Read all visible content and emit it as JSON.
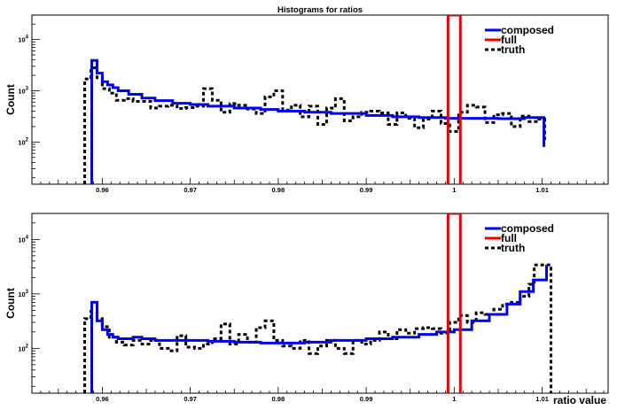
{
  "chart_data": [
    {
      "type": "histogram",
      "title": "Histograms for ratios",
      "ylabel": "Count",
      "xlabel": "",
      "xlim": [
        0.952,
        1.0175
      ],
      "ylim": [
        15,
        30000
      ],
      "log_y": true,
      "xticks": [
        "0.96",
        "0.97",
        "0.98",
        "0.99",
        "1",
        "1.01"
      ],
      "yticks": [
        "10^2",
        "10^3",
        "10^4"
      ],
      "legend": {
        "placement": "top-right",
        "entries": [
          "composed",
          "full",
          "truth"
        ]
      },
      "colors": {
        "composed": "#0000ee",
        "full": "#ee0000",
        "truth": "#000000"
      },
      "series": [
        {
          "name": "composed",
          "style": "solid",
          "x": [
            0.9588,
            0.9594,
            0.96,
            0.9606,
            0.9612,
            0.9618,
            0.963,
            0.9645,
            0.966,
            0.968,
            0.97,
            0.972,
            0.975,
            0.978,
            0.98,
            0.983,
            0.986,
            0.99,
            0.993,
            0.996,
            0.999,
            1.002,
            1.005,
            1.008,
            1.0102
          ],
          "values": [
            3900,
            2200,
            1500,
            1300,
            1150,
            1000,
            850,
            720,
            640,
            570,
            540,
            500,
            460,
            430,
            400,
            380,
            360,
            330,
            310,
            300,
            290,
            290,
            285,
            300,
            80
          ]
        },
        {
          "name": "full",
          "style": "solid",
          "x": [
            0.9993,
            1.0007
          ],
          "values": [
            30000
          ]
        },
        {
          "name": "truth",
          "style": "dashed",
          "x": [
            0.958,
            0.9587,
            0.9594,
            0.96,
            0.9608,
            0.9616,
            0.9625,
            0.9635,
            0.9645,
            0.9655,
            0.9665,
            0.9675,
            0.9685,
            0.9695,
            0.9705,
            0.9715,
            0.9725,
            0.9735,
            0.9745,
            0.9755,
            0.9765,
            0.9775,
            0.9785,
            0.9795,
            0.9805,
            0.9815,
            0.9825,
            0.9835,
            0.9845,
            0.9855,
            0.9865,
            0.9875,
            0.9885,
            0.9895,
            0.9905,
            0.9915,
            0.9925,
            0.9935,
            0.9945,
            0.9955,
            0.9965,
            0.9975,
            0.9985,
            0.9995,
            1.0005,
            1.0015,
            1.0025,
            1.0035,
            1.0045,
            1.0055,
            1.0065,
            1.0075,
            1.0085,
            1.0095,
            1.0103
          ],
          "values": [
            1700,
            2800,
            1800,
            1100,
            900,
            650,
            700,
            620,
            620,
            460,
            500,
            520,
            450,
            470,
            500,
            1100,
            650,
            380,
            560,
            520,
            440,
            360,
            760,
            1000,
            420,
            520,
            310,
            500,
            220,
            460,
            700,
            260,
            310,
            380,
            400,
            370,
            220,
            370,
            290,
            190,
            280,
            400,
            230,
            160,
            380,
            520,
            480,
            240,
            340,
            360,
            200,
            320,
            250,
            280,
            110
          ]
        }
      ]
    },
    {
      "type": "histogram",
      "title": "",
      "ylabel": "Count",
      "xlabel": "ratio value",
      "xlim": [
        0.952,
        1.0175
      ],
      "ylim": [
        15,
        30000
      ],
      "log_y": true,
      "xticks": [
        "0.96",
        "0.97",
        "0.98",
        "0.99",
        "1",
        "1.01"
      ],
      "yticks": [
        "10^2",
        "10^3",
        "10^4"
      ],
      "legend": {
        "placement": "top-right",
        "entries": [
          "composed",
          "full",
          "truth"
        ]
      },
      "colors": {
        "composed": "#0000ee",
        "full": "#ee0000",
        "truth": "#000000"
      },
      "series": [
        {
          "name": "composed",
          "style": "solid",
          "x": [
            0.9588,
            0.9594,
            0.96,
            0.9606,
            0.9612,
            0.9618,
            0.9625,
            0.9635,
            0.9645,
            0.966,
            0.968,
            0.97,
            0.972,
            0.975,
            0.978,
            0.98,
            0.983,
            0.986,
            0.99,
            0.993,
            0.996,
            0.998,
            1.0,
            1.002,
            1.004,
            1.006,
            1.0075,
            1.009,
            1.0105
          ],
          "values": [
            700,
            320,
            220,
            180,
            160,
            150,
            150,
            160,
            150,
            140,
            140,
            140,
            135,
            130,
            125,
            125,
            130,
            140,
            150,
            160,
            180,
            200,
            220,
            320,
            420,
            650,
            1100,
            1800,
            3400
          ]
        },
        {
          "name": "full",
          "style": "solid",
          "x": [
            0.9993,
            1.0007
          ],
          "values": [
            30000
          ]
        },
        {
          "name": "truth",
          "style": "dashed",
          "x": [
            0.958,
            0.9587,
            0.9594,
            0.96,
            0.9608,
            0.9616,
            0.9625,
            0.9635,
            0.9645,
            0.9655,
            0.9665,
            0.9675,
            0.9685,
            0.9695,
            0.9705,
            0.9715,
            0.9725,
            0.9735,
            0.9745,
            0.9755,
            0.9765,
            0.9775,
            0.9785,
            0.9795,
            0.9805,
            0.9815,
            0.9825,
            0.9835,
            0.9845,
            0.9855,
            0.9865,
            0.9875,
            0.9885,
            0.9895,
            0.9905,
            0.9915,
            0.9925,
            0.9935,
            0.9945,
            0.9955,
            0.9965,
            0.9975,
            0.9985,
            0.9995,
            1.0005,
            1.0015,
            1.0025,
            1.0035,
            1.0045,
            1.0055,
            1.0065,
            1.0075,
            1.0085,
            1.0091,
            1.0103,
            1.011
          ],
          "values": [
            350,
            480,
            350,
            250,
            160,
            130,
            115,
            140,
            120,
            140,
            100,
            90,
            170,
            105,
            100,
            120,
            150,
            280,
            120,
            180,
            130,
            240,
            320,
            140,
            110,
            100,
            140,
            80,
            110,
            140,
            100,
            80,
            140,
            120,
            140,
            200,
            150,
            220,
            190,
            230,
            240,
            230,
            190,
            300,
            400,
            300,
            450,
            420,
            520,
            650,
            700,
            900,
            1500,
            3400,
            3400
          ]
        }
      ]
    }
  ]
}
